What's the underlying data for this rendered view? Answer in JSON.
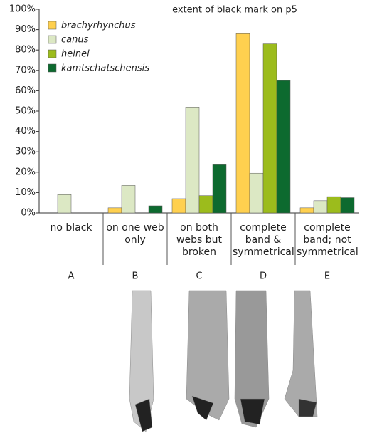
{
  "chart_data": {
    "type": "bar",
    "title": "extent of black mark on p5",
    "categories": [
      "no black",
      "on one web only",
      "on both webs but broken",
      "complete band & symmetrical",
      "complete band; not symmetrical"
    ],
    "groups": [
      "A",
      "B",
      "C",
      "D",
      "E"
    ],
    "series": [
      {
        "name": "brachyrhynchus",
        "color": "#ffd04f",
        "values": [
          0,
          2.5,
          7,
          88,
          2.5
        ]
      },
      {
        "name": "canus",
        "color": "#dce8c4",
        "values": [
          9,
          13.5,
          52,
          19.5,
          6
        ]
      },
      {
        "name": "heinei",
        "color": "#9cbc1c",
        "values": [
          0,
          0,
          8.5,
          83,
          8
        ]
      },
      {
        "name": "kamtschatschensis",
        "color": "#0d6a2f",
        "values": [
          0,
          3.5,
          24,
          65,
          7.5
        ]
      }
    ],
    "ylim": [
      0,
      100
    ],
    "yticks": [
      {
        "value": 0,
        "label": "0%"
      },
      {
        "value": 10,
        "label": "10%"
      },
      {
        "value": 20,
        "label": "20%"
      },
      {
        "value": 30,
        "label": "30%"
      },
      {
        "value": 40,
        "label": "40%"
      },
      {
        "value": 50,
        "label": "50%"
      },
      {
        "value": 60,
        "label": "60%"
      },
      {
        "value": 70,
        "label": "70%"
      },
      {
        "value": 80,
        "label": "80%"
      },
      {
        "value": 90,
        "label": "90%"
      },
      {
        "value": 100,
        "label": "100%"
      }
    ],
    "legend": "top-left"
  }
}
